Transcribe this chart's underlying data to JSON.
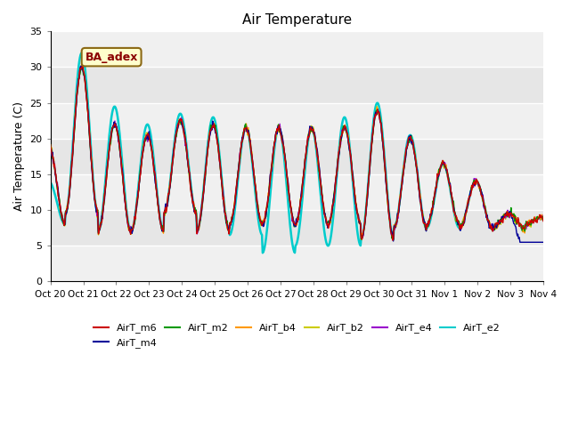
{
  "title": "Air Temperature",
  "ylabel": "Air Temperature (C)",
  "ylim": [
    0,
    35
  ],
  "yticks": [
    0,
    5,
    10,
    15,
    20,
    25,
    30,
    35
  ],
  "series": {
    "AirT_m6": {
      "color": "#cc0000",
      "lw": 1.0
    },
    "AirT_m4": {
      "color": "#000099",
      "lw": 1.0
    },
    "AirT_m2": {
      "color": "#009900",
      "lw": 1.0
    },
    "AirT_b4": {
      "color": "#ff9900",
      "lw": 1.0
    },
    "AirT_b2": {
      "color": "#cccc00",
      "lw": 1.0
    },
    "AirT_e4": {
      "color": "#9900cc",
      "lw": 1.0
    },
    "AirT_e2": {
      "color": "#00cccc",
      "lw": 1.8
    }
  },
  "annotation_text": "BA_adex",
  "xticklabels": [
    "Oct 20",
    "Oct 21",
    "Oct 22",
    "Oct 23",
    "Oct 24",
    "Oct 25",
    "Oct 26",
    "Oct 27",
    "Oct 28",
    "Oct 29",
    "Oct 30",
    "Oct 31",
    "Nov 1",
    "Nov 2",
    "Nov 3",
    "Nov 4"
  ],
  "day_peaks": [
    19.0,
    30.0,
    22.0,
    20.5,
    22.5,
    22.0,
    21.5,
    21.5,
    21.5,
    21.5,
    24.0,
    20.0,
    16.5,
    14.0,
    9.5,
    9.0
  ],
  "day_troughs": [
    8.0,
    9.5,
    7.0,
    7.0,
    9.5,
    7.0,
    8.0,
    8.0,
    8.0,
    8.0,
    6.0,
    7.5,
    8.0,
    7.5,
    7.5,
    8.0
  ],
  "cyan_peaks": [
    14.0,
    32.0,
    24.5,
    22.0,
    23.5,
    23.0,
    21.5,
    21.5,
    21.5,
    23.0,
    25.0,
    20.5,
    16.5,
    14.0,
    9.5,
    9.0
  ],
  "cyan_troughs": [
    8.0,
    9.5,
    7.0,
    7.0,
    9.5,
    7.0,
    6.5,
    4.0,
    5.0,
    5.0,
    6.0,
    7.5,
    7.5,
    7.5,
    7.5,
    8.0
  ],
  "blue_final_drop": true
}
